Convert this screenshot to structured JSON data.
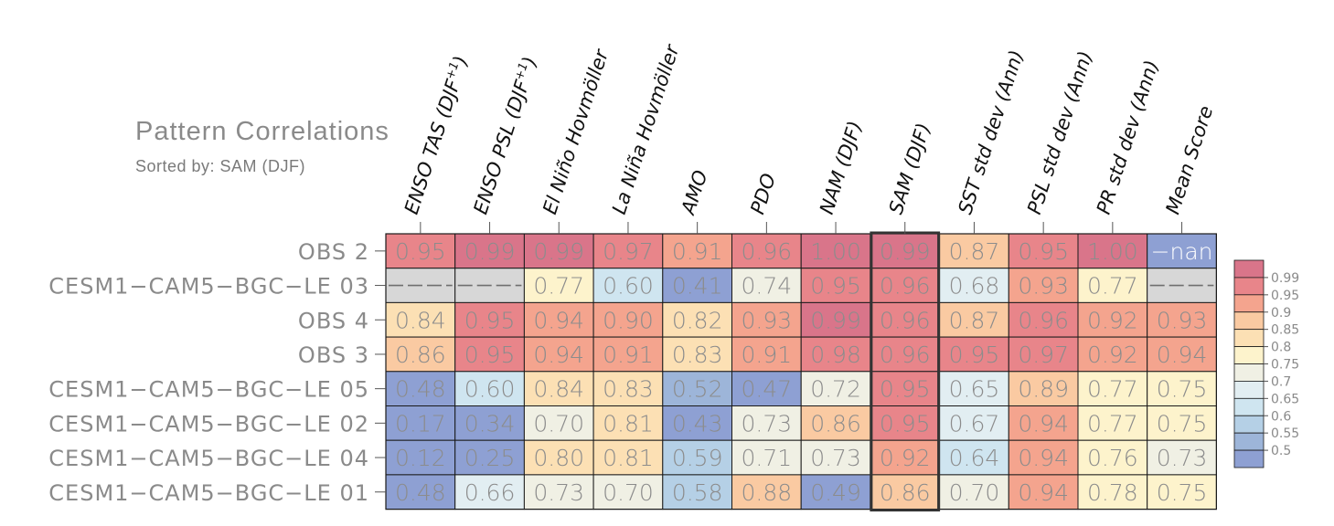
{
  "chart_data": {
    "type": "heatmap",
    "title": "Pattern Correlations",
    "subtitle": "Sorted by: SAM (DJF)",
    "columns": [
      {
        "label": "ENSO TAS (DJF",
        "sup": "+1",
        "close": ")"
      },
      {
        "label": "ENSO PSL (DJF",
        "sup": "+1",
        "close": ")"
      },
      {
        "label": "El Niño Hovmöller",
        "sup": "",
        "close": ""
      },
      {
        "label": "La Niña Hovmöller",
        "sup": "",
        "close": ""
      },
      {
        "label": "AMO",
        "sup": "",
        "close": ""
      },
      {
        "label": "PDO",
        "sup": "",
        "close": ""
      },
      {
        "label": "NAM (DJF)",
        "sup": "",
        "close": ""
      },
      {
        "label": "SAM (DJF)",
        "sup": "",
        "close": ""
      },
      {
        "label": "SST std dev (Ann)",
        "sup": "",
        "close": ""
      },
      {
        "label": "PSL std dev (Ann)",
        "sup": "",
        "close": ""
      },
      {
        "label": "PR std dev (Ann)",
        "sup": "",
        "close": ""
      },
      {
        "label": "Mean Score",
        "sup": "",
        "close": ""
      }
    ],
    "sorted_column_index": 7,
    "rows": [
      {
        "name": "OBS 2",
        "values": [
          "0.95",
          "0.99",
          "0.99",
          "0.97",
          "0.91",
          "0.96",
          "1.00",
          "0.99",
          "0.87",
          "0.95",
          "1.00",
          "-nan"
        ]
      },
      {
        "name": "CESM1-CAM5-BGC-LE 03",
        "values": [
          "---",
          "---",
          "0.77",
          "0.60",
          "0.41",
          "0.74",
          "0.95",
          "0.96",
          "0.68",
          "0.93",
          "0.77",
          "---"
        ]
      },
      {
        "name": "OBS 4",
        "values": [
          "0.84",
          "0.95",
          "0.94",
          "0.90",
          "0.82",
          "0.93",
          "0.99",
          "0.96",
          "0.87",
          "0.96",
          "0.92",
          "0.93"
        ]
      },
      {
        "name": "OBS 3",
        "values": [
          "0.86",
          "0.95",
          "0.94",
          "0.91",
          "0.83",
          "0.91",
          "0.98",
          "0.96",
          "0.95",
          "0.97",
          "0.92",
          "0.94"
        ]
      },
      {
        "name": "CESM1-CAM5-BGC-LE 05",
        "values": [
          "0.48",
          "0.60",
          "0.84",
          "0.83",
          "0.52",
          "0.47",
          "0.72",
          "0.95",
          "0.65",
          "0.89",
          "0.77",
          "0.75"
        ]
      },
      {
        "name": "CESM1-CAM5-BGC-LE 02",
        "values": [
          "0.17",
          "0.34",
          "0.70",
          "0.81",
          "0.43",
          "0.73",
          "0.86",
          "0.95",
          "0.67",
          "0.94",
          "0.77",
          "0.75"
        ]
      },
      {
        "name": "CESM1-CAM5-BGC-LE 04",
        "values": [
          "0.12",
          "0.25",
          "0.80",
          "0.81",
          "0.59",
          "0.71",
          "0.73",
          "0.92",
          "0.64",
          "0.94",
          "0.76",
          "0.73"
        ]
      },
      {
        "name": "CESM1-CAM5-BGC-LE 01",
        "values": [
          "0.48",
          "0.66",
          "0.73",
          "0.70",
          "0.58",
          "0.88",
          "0.49",
          "0.86",
          "0.70",
          "0.94",
          "0.78",
          "0.75"
        ]
      }
    ],
    "colorbar": {
      "labels": [
        "0.99",
        "0.95",
        "0.9",
        "0.85",
        "0.8",
        "0.75",
        "0.7",
        "0.65",
        "0.6",
        "0.55",
        "0.5"
      ],
      "bins": [
        {
          "min": 0.99,
          "color": "#d9758a"
        },
        {
          "min": 0.95,
          "color": "#e8858a"
        },
        {
          "min": 0.9,
          "color": "#f4a48e"
        },
        {
          "min": 0.85,
          "color": "#facaa2"
        },
        {
          "min": 0.8,
          "color": "#fce0b4"
        },
        {
          "min": 0.75,
          "color": "#fdf3cc"
        },
        {
          "min": 0.7,
          "color": "#f0f0e4"
        },
        {
          "min": 0.65,
          "color": "#e2eef2"
        },
        {
          "min": 0.6,
          "color": "#cfe5f0"
        },
        {
          "min": 0.55,
          "color": "#b5d0e6"
        },
        {
          "min": 0.5,
          "color": "#9db5d9"
        },
        {
          "min": -1,
          "color": "#8ea0d3"
        }
      ],
      "missing_color": "#d7d7d7"
    }
  }
}
